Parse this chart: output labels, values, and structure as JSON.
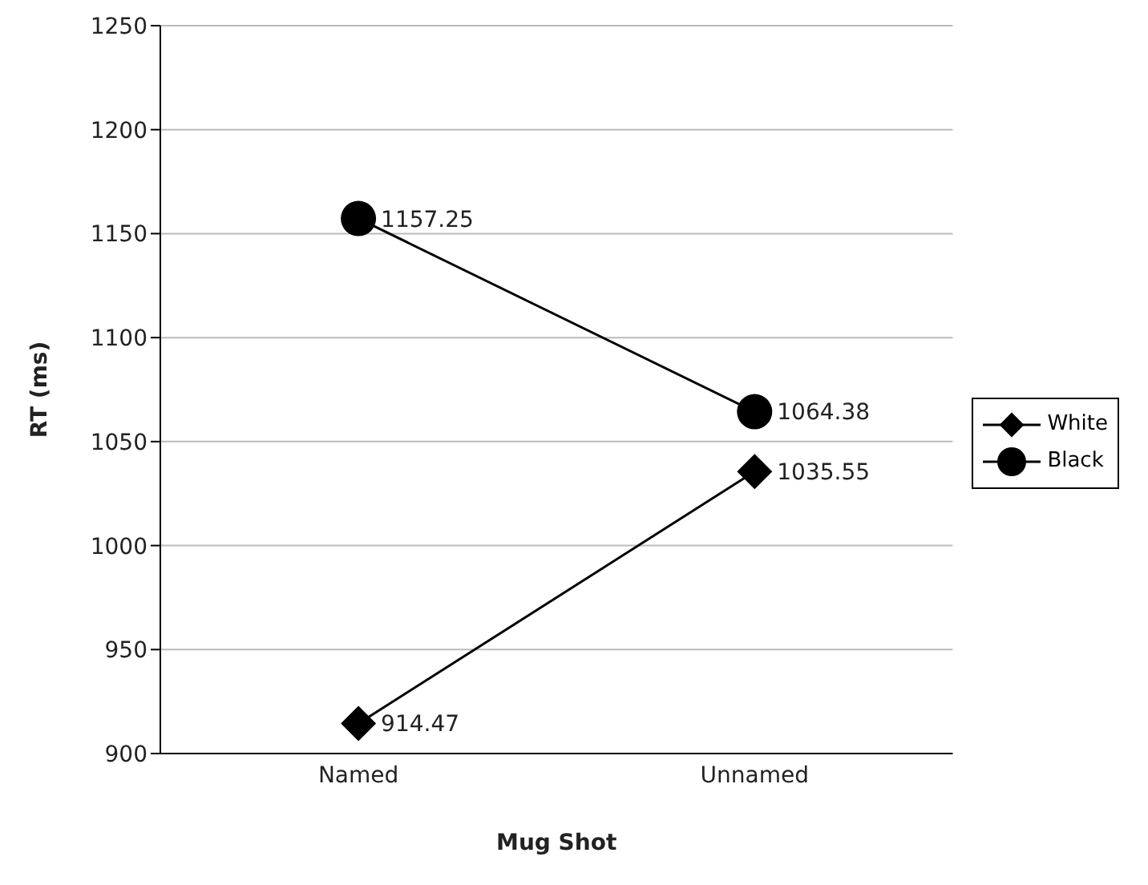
{
  "chart_data": {
    "type": "line",
    "xlabel": "Mug Shot",
    "ylabel": "RT (ms)",
    "categories": [
      "Named",
      "Unnamed"
    ],
    "series": [
      {
        "name": "White",
        "color": "#000000",
        "values": [
          914.47,
          1035.55
        ],
        "marker": "diamond"
      },
      {
        "name": "Black",
        "color": "#000000",
        "values": [
          1157.25,
          1064.38
        ],
        "marker": "circle"
      }
    ],
    "ylim": [
      900,
      1250
    ],
    "yticks": [
      900,
      950,
      1000,
      1050,
      1100,
      1150,
      1200,
      1250
    ],
    "grid": "y",
    "legend": "right",
    "data_labels": true,
    "line_style": "solid"
  }
}
